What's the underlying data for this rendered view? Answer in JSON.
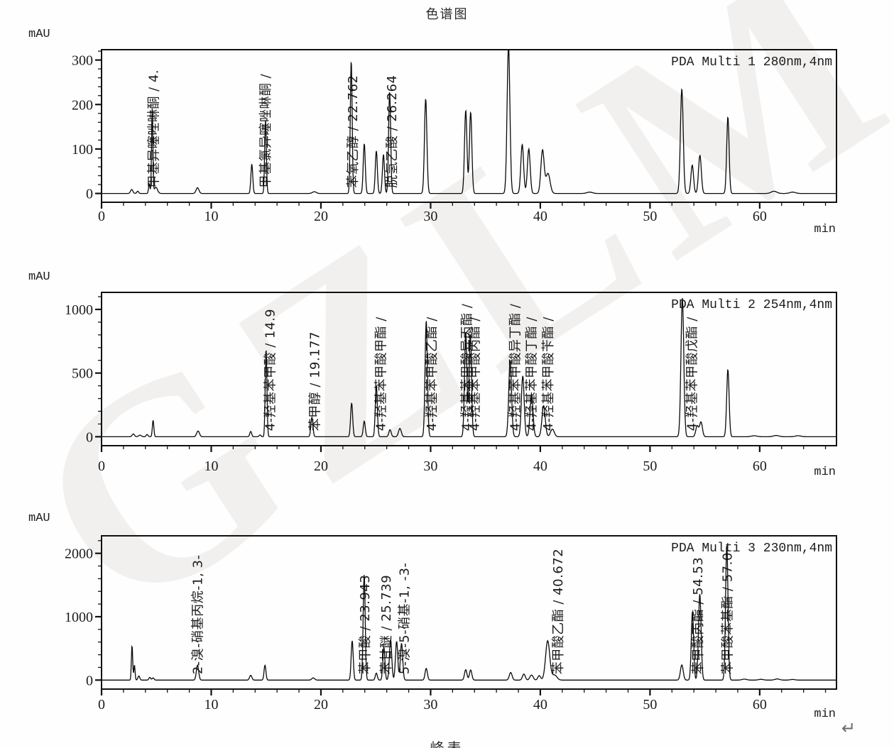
{
  "page": {
    "title": "色谱图",
    "footer_partial": "峰表",
    "return_mark": "↵",
    "watermark_text": "GZLM"
  },
  "chart_data": [
    {
      "type": "line",
      "detector_label": "PDA Multi 1 280nm,4nm",
      "wavelength": "280nm",
      "x_unit": "min",
      "y_unit": "mAU",
      "x_range": [
        0,
        67
      ],
      "y_range": [
        0,
        323
      ],
      "x_major_ticks": [
        0,
        10,
        20,
        30,
        40,
        50,
        60
      ],
      "x_minor_tick_step": 2,
      "y_major_ticks": [
        0,
        100,
        200,
        300
      ],
      "y_minor_tick_step": 20,
      "grid": false,
      "peaks": [
        {
          "rt": 2.75,
          "mAU": 9,
          "w": 0.25
        },
        {
          "rt": 3.3,
          "mAU": 5,
          "w": 0.2
        },
        {
          "rt": 4.35,
          "mAU": 22,
          "w": 0.15
        },
        {
          "rt": 4.62,
          "mAU": 190,
          "w": 0.14
        },
        {
          "rt": 4.95,
          "mAU": 14,
          "w": 0.35
        },
        {
          "rt": 8.75,
          "mAU": 13,
          "w": 0.3
        },
        {
          "rt": 13.7,
          "mAU": 66,
          "w": 0.2
        },
        {
          "rt": 14.95,
          "mAU": 165,
          "w": 0.18
        },
        {
          "rt": 19.4,
          "mAU": 4,
          "w": 0.4
        },
        {
          "rt": 22.762,
          "mAU": 298,
          "w": 0.2
        },
        {
          "rt": 23.95,
          "mAU": 112,
          "w": 0.22
        },
        {
          "rt": 25.05,
          "mAU": 96,
          "w": 0.22
        },
        {
          "rt": 25.7,
          "mAU": 88,
          "w": 0.22
        },
        {
          "rt": 26.264,
          "mAU": 230,
          "w": 0.22
        },
        {
          "rt": 29.55,
          "mAU": 213,
          "w": 0.26
        },
        {
          "rt": 33.2,
          "mAU": 187,
          "w": 0.26
        },
        {
          "rt": 33.65,
          "mAU": 183,
          "w": 0.26
        },
        {
          "rt": 37.1,
          "mAU": 332,
          "w": 0.3
        },
        {
          "rt": 38.35,
          "mAU": 110,
          "w": 0.3
        },
        {
          "rt": 38.95,
          "mAU": 100,
          "w": 0.3
        },
        {
          "rt": 40.2,
          "mAU": 97,
          "w": 0.35
        },
        {
          "rt": 40.7,
          "mAU": 45,
          "w": 0.45
        },
        {
          "rt": 44.5,
          "mAU": 3,
          "w": 0.6
        },
        {
          "rt": 52.9,
          "mAU": 235,
          "w": 0.3
        },
        {
          "rt": 53.85,
          "mAU": 64,
          "w": 0.28
        },
        {
          "rt": 54.55,
          "mAU": 86,
          "w": 0.3
        },
        {
          "rt": 57.1,
          "mAU": 172,
          "w": 0.26
        },
        {
          "rt": 61.3,
          "mAU": 5,
          "w": 0.6
        },
        {
          "rt": 63.0,
          "mAU": 3,
          "w": 0.6
        }
      ],
      "peak_labels": [
        {
          "rt": 5.15,
          "text": "甲基异噻唑啉酮 / 4."
        },
        {
          "rt": 15.35,
          "text": "甲基氯异噻唑啉酮 /"
        },
        {
          "rt": 23.3,
          "text": "苯氧乙醇 / 22.762"
        },
        {
          "rt": 26.85,
          "text": "脱氢乙酸 / 26.264"
        }
      ]
    },
    {
      "type": "line",
      "detector_label": "PDA Multi 2 254nm,4nm",
      "wavelength": "254nm",
      "x_unit": "min",
      "y_unit": "mAU",
      "x_range": [
        0,
        67
      ],
      "y_range": [
        0,
        1134
      ],
      "x_major_ticks": [
        0,
        10,
        20,
        30,
        40,
        50,
        60
      ],
      "x_minor_tick_step": 2,
      "y_major_ticks": [
        0,
        500,
        1000
      ],
      "y_minor_tick_step": 100,
      "grid": false,
      "peaks": [
        {
          "rt": 2.9,
          "mAU": 22,
          "w": 0.25
        },
        {
          "rt": 3.5,
          "mAU": 12,
          "w": 0.3
        },
        {
          "rt": 4.15,
          "mAU": 18,
          "w": 0.2
        },
        {
          "rt": 4.7,
          "mAU": 130,
          "w": 0.16
        },
        {
          "rt": 8.8,
          "mAU": 45,
          "w": 0.3
        },
        {
          "rt": 13.6,
          "mAU": 42,
          "w": 0.2
        },
        {
          "rt": 14.45,
          "mAU": 14,
          "w": 0.2
        },
        {
          "rt": 15.0,
          "mAU": 690,
          "w": 0.18
        },
        {
          "rt": 19.177,
          "mAU": 152,
          "w": 0.22
        },
        {
          "rt": 22.8,
          "mAU": 265,
          "w": 0.22
        },
        {
          "rt": 23.95,
          "mAU": 122,
          "w": 0.22
        },
        {
          "rt": 25.05,
          "mAU": 405,
          "w": 0.22
        },
        {
          "rt": 26.3,
          "mAU": 55,
          "w": 0.25
        },
        {
          "rt": 27.2,
          "mAU": 65,
          "w": 0.3
        },
        {
          "rt": 29.6,
          "mAU": 912,
          "w": 0.25
        },
        {
          "rt": 33.2,
          "mAU": 822,
          "w": 0.26
        },
        {
          "rt": 33.62,
          "mAU": 800,
          "w": 0.26
        },
        {
          "rt": 37.25,
          "mAU": 602,
          "w": 0.3
        },
        {
          "rt": 38.4,
          "mAU": 478,
          "w": 0.3
        },
        {
          "rt": 39.2,
          "mAU": 332,
          "w": 0.32
        },
        {
          "rt": 40.3,
          "mAU": 245,
          "w": 0.35
        },
        {
          "rt": 41.1,
          "mAU": 60,
          "w": 0.4
        },
        {
          "rt": 52.95,
          "mAU": 1090,
          "w": 0.3
        },
        {
          "rt": 54.3,
          "mAU": 85,
          "w": 0.3
        },
        {
          "rt": 54.65,
          "mAU": 115,
          "w": 0.3
        },
        {
          "rt": 57.1,
          "mAU": 528,
          "w": 0.26
        },
        {
          "rt": 59.5,
          "mAU": 8,
          "w": 0.6
        },
        {
          "rt": 61.5,
          "mAU": 10,
          "w": 0.6
        },
        {
          "rt": 63.5,
          "mAU": 8,
          "w": 0.6
        }
      ],
      "peak_labels": [
        {
          "rt": 15.75,
          "text": "4-羟基苯甲酸 / 14.9"
        },
        {
          "rt": 19.85,
          "text": "苯甲醇 / 19.177"
        },
        {
          "rt": 25.85,
          "text": "4-羟基苯甲酸甲酯 /"
        },
        {
          "rt": 30.5,
          "text": "4-羟基苯甲酸乙酯 /"
        },
        {
          "rt": 33.7,
          "text": "4-羟基苯甲酸异丙酯 /"
        },
        {
          "rt": 34.4,
          "text": "4-羟基苯甲酸丙酯 /"
        },
        {
          "rt": 38.1,
          "text": "4-羟基苯甲酸异丁酯 /"
        },
        {
          "rt": 39.6,
          "text": "4-羟基苯甲酸丁酯 /"
        },
        {
          "rt": 41.1,
          "text": "4-羟基苯甲酸苄酯 /"
        },
        {
          "rt": 54.2,
          "text": "4-羟基苯甲酸戊酯 /"
        }
      ]
    },
    {
      "type": "line",
      "detector_label": "PDA Multi 3 230nm,4nm",
      "wavelength": "230nm",
      "x_unit": "min",
      "y_unit": "mAU",
      "x_range": [
        0,
        67
      ],
      "y_range": [
        0,
        2284
      ],
      "x_major_ticks": [
        0,
        10,
        20,
        30,
        40,
        50,
        60
      ],
      "x_minor_tick_step": 2,
      "y_major_ticks": [
        0,
        1000,
        2000
      ],
      "y_minor_tick_step": 200,
      "grid": false,
      "peaks": [
        {
          "rt": 2.78,
          "mAU": 545,
          "w": 0.14
        },
        {
          "rt": 3.0,
          "mAU": 240,
          "w": 0.13
        },
        {
          "rt": 3.4,
          "mAU": 65,
          "w": 0.2
        },
        {
          "rt": 4.4,
          "mAU": 42,
          "w": 0.2
        },
        {
          "rt": 4.7,
          "mAU": 35,
          "w": 0.2
        },
        {
          "rt": 8.75,
          "mAU": 235,
          "w": 0.25
        },
        {
          "rt": 13.6,
          "mAU": 75,
          "w": 0.25
        },
        {
          "rt": 14.9,
          "mAU": 235,
          "w": 0.2
        },
        {
          "rt": 19.3,
          "mAU": 35,
          "w": 0.3
        },
        {
          "rt": 22.85,
          "mAU": 620,
          "w": 0.22
        },
        {
          "rt": 23.943,
          "mAU": 1660,
          "w": 0.22
        },
        {
          "rt": 25.05,
          "mAU": 110,
          "w": 0.22
        },
        {
          "rt": 25.739,
          "mAU": 520,
          "w": 0.22
        },
        {
          "rt": 26.35,
          "mAU": 640,
          "w": 0.25
        },
        {
          "rt": 26.9,
          "mAU": 610,
          "w": 0.25
        },
        {
          "rt": 27.35,
          "mAU": 580,
          "w": 0.25
        },
        {
          "rt": 29.6,
          "mAU": 185,
          "w": 0.25
        },
        {
          "rt": 33.2,
          "mAU": 165,
          "w": 0.26
        },
        {
          "rt": 33.65,
          "mAU": 160,
          "w": 0.26
        },
        {
          "rt": 37.3,
          "mAU": 120,
          "w": 0.3
        },
        {
          "rt": 38.5,
          "mAU": 95,
          "w": 0.3
        },
        {
          "rt": 39.2,
          "mAU": 80,
          "w": 0.35
        },
        {
          "rt": 39.9,
          "mAU": 70,
          "w": 0.3
        },
        {
          "rt": 40.672,
          "mAU": 620,
          "w": 0.45
        },
        {
          "rt": 41.3,
          "mAU": 80,
          "w": 0.5
        },
        {
          "rt": 52.9,
          "mAU": 240,
          "w": 0.3
        },
        {
          "rt": 53.87,
          "mAU": 1080,
          "w": 0.25
        },
        {
          "rt": 54.54,
          "mAU": 1360,
          "w": 0.28
        },
        {
          "rt": 57.0,
          "mAU": 2140,
          "w": 0.26
        },
        {
          "rt": 58.6,
          "mAU": 15,
          "w": 0.5
        },
        {
          "rt": 60.1,
          "mAU": 12,
          "w": 0.5
        },
        {
          "rt": 61.6,
          "mAU": 18,
          "w": 0.5
        },
        {
          "rt": 63.0,
          "mAU": 10,
          "w": 0.5
        }
      ],
      "peak_labels": [
        {
          "rt": 9.15,
          "text": "2-溴-硝基丙烷-1, 3-"
        },
        {
          "rt": 24.4,
          "text": "苯甲酸 / 23.943"
        },
        {
          "rt": 26.35,
          "text": "苯甘醚 / 25.739"
        },
        {
          "rt": 28.0,
          "text": "5-溴-5-硝基-1, -3-"
        },
        {
          "rt": 42.0,
          "text": "苯甲酸乙酯 / 40.672"
        },
        {
          "rt": 54.75,
          "text": "苯甲酸丙酯 / 54.53"
        },
        {
          "rt": 57.45,
          "text": "苯甲酸苯基酯 / 57.0"
        }
      ]
    }
  ]
}
